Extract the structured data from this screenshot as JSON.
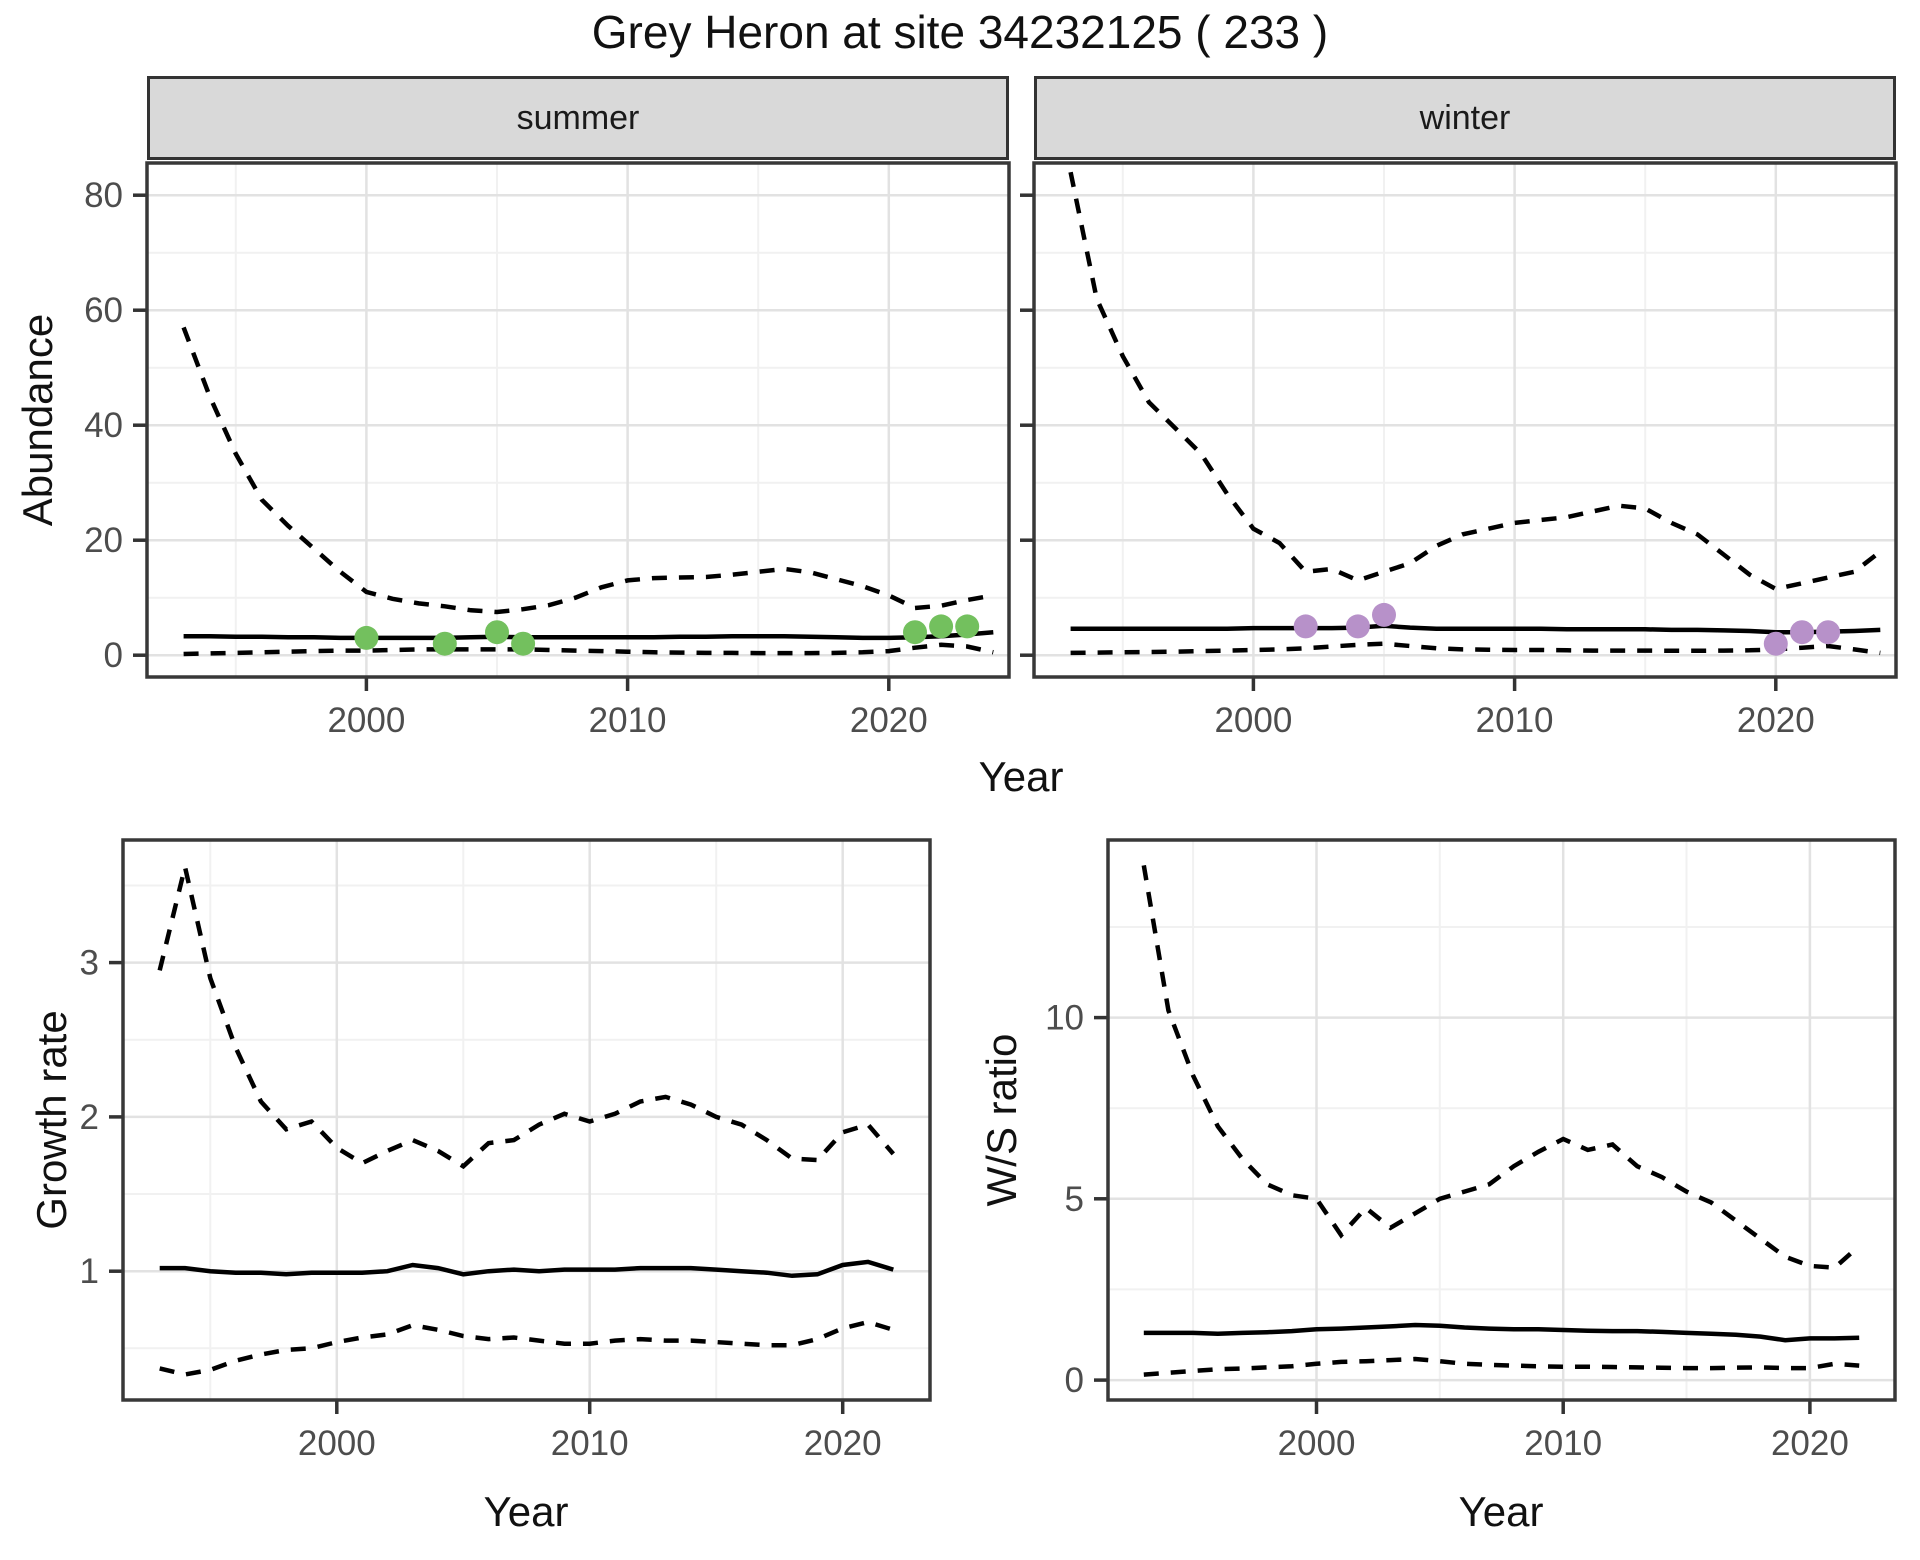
{
  "title": "Grey Heron at site 34232125 ( 233 )",
  "colors": {
    "summer_points": "#73c05e",
    "winter_points": "#b791c9",
    "line": "#000000",
    "grid_major": "#e2e2e2",
    "grid_minor": "#f1f1f1",
    "panel_border": "#383838",
    "tick_mark": "#333333",
    "tick_label": "#4d4d4d",
    "strip_fill": "#d9d9d9"
  },
  "chart_data": [
    {
      "id": "summer",
      "type": "line",
      "facet": "summer",
      "ylabel": "Abundance",
      "xlabel": "Year",
      "xlim": [
        1991.6,
        2024.6
      ],
      "ylim": [
        -3.8,
        85.6
      ],
      "xticks": [
        2000,
        2010,
        2020
      ],
      "xticks_minor": [
        1995,
        2005,
        2015
      ],
      "yticks": [
        0,
        20,
        40,
        60,
        80
      ],
      "yticks_minor": [
        10,
        30,
        50,
        70
      ],
      "x": [
        1993,
        1994,
        1995,
        1996,
        1997,
        1998,
        1999,
        2000,
        2001,
        2002,
        2003,
        2004,
        2005,
        2006,
        2007,
        2008,
        2009,
        2010,
        2011,
        2012,
        2013,
        2014,
        2015,
        2016,
        2017,
        2018,
        2019,
        2020,
        2021,
        2022,
        2023,
        2024
      ],
      "series": [
        {
          "name": "upper_95ci",
          "linetype": "dashed",
          "values": [
            57,
            45,
            35,
            27,
            22.5,
            18.5,
            14.5,
            11,
            9.8,
            9,
            8.5,
            7.8,
            7.5,
            8,
            8.7,
            10,
            11.8,
            13,
            13.4,
            13.5,
            13.6,
            14,
            14.5,
            15,
            14.4,
            13.2,
            12,
            10.4,
            8.2,
            8.6,
            9.6,
            10.4
          ]
        },
        {
          "name": "median",
          "linetype": "solid",
          "values": [
            3.3,
            3.3,
            3.2,
            3.2,
            3.1,
            3.1,
            3.0,
            3.0,
            3.0,
            3.0,
            3.0,
            3.1,
            3.2,
            3.1,
            3.1,
            3.1,
            3.1,
            3.1,
            3.1,
            3.2,
            3.2,
            3.3,
            3.3,
            3.3,
            3.2,
            3.1,
            3.0,
            3.0,
            3.1,
            3.3,
            3.6,
            4.0
          ]
        },
        {
          "name": "lower_95ci",
          "linetype": "dashed",
          "values": [
            0.2,
            0.3,
            0.4,
            0.5,
            0.6,
            0.7,
            0.8,
            0.8,
            0.9,
            1.0,
            1.0,
            1.0,
            1.0,
            1.0,
            0.9,
            0.8,
            0.7,
            0.6,
            0.5,
            0.45,
            0.4,
            0.4,
            0.35,
            0.35,
            0.35,
            0.4,
            0.5,
            0.7,
            1.3,
            1.8,
            1.5,
            0.5
          ]
        }
      ],
      "points": {
        "name": "observed_counts",
        "color_key": "summer_points",
        "x": [
          2000,
          2003,
          2005,
          2006,
          2021,
          2022,
          2023
        ],
        "y": [
          3,
          2,
          4,
          2,
          4,
          5,
          5
        ]
      }
    },
    {
      "id": "winter",
      "type": "line",
      "facet": "winter",
      "ylabel": "Abundance",
      "xlabel": "Year",
      "xlim": [
        1991.6,
        2024.6
      ],
      "ylim": [
        -3.8,
        85.6
      ],
      "xticks": [
        2000,
        2010,
        2020
      ],
      "xticks_minor": [
        1995,
        2005,
        2015
      ],
      "yticks": [
        0,
        20,
        40,
        60,
        80
      ],
      "yticks_minor": [
        10,
        30,
        50,
        70
      ],
      "show_ytick_labels": false,
      "x": [
        1993,
        1994,
        1995,
        1996,
        1997,
        1998,
        1999,
        2000,
        2001,
        2002,
        2003,
        2004,
        2005,
        2006,
        2007,
        2008,
        2009,
        2010,
        2011,
        2012,
        2013,
        2014,
        2015,
        2016,
        2017,
        2018,
        2019,
        2020,
        2021,
        2022,
        2023,
        2024
      ],
      "series": [
        {
          "name": "upper_95ci",
          "linetype": "dashed",
          "values": [
            84,
            62,
            52,
            44,
            39.5,
            35,
            28,
            22,
            19.5,
            14.5,
            15,
            13,
            14.5,
            16,
            19,
            21,
            22,
            23,
            23.5,
            24,
            25,
            26,
            25.5,
            23,
            21,
            17.5,
            14,
            11.5,
            12.5,
            13.5,
            14.5,
            18
          ]
        },
        {
          "name": "median",
          "linetype": "solid",
          "values": [
            4.6,
            4.6,
            4.6,
            4.6,
            4.6,
            4.6,
            4.6,
            4.7,
            4.7,
            4.7,
            4.7,
            4.8,
            5.1,
            4.8,
            4.6,
            4.6,
            4.6,
            4.6,
            4.6,
            4.5,
            4.5,
            4.5,
            4.5,
            4.4,
            4.4,
            4.3,
            4.2,
            4.0,
            4.0,
            4.1,
            4.2,
            4.4
          ]
        },
        {
          "name": "lower_95ci",
          "linetype": "dashed",
          "values": [
            0.4,
            0.45,
            0.5,
            0.55,
            0.6,
            0.7,
            0.8,
            0.9,
            1.0,
            1.2,
            1.5,
            1.8,
            2.0,
            1.6,
            1.2,
            1.0,
            0.95,
            0.9,
            0.9,
            0.85,
            0.8,
            0.8,
            0.8,
            0.75,
            0.75,
            0.8,
            0.85,
            1.0,
            1.3,
            1.6,
            1.0,
            0.4
          ]
        }
      ],
      "points": {
        "name": "observed_counts",
        "color_key": "winter_points",
        "x": [
          2002,
          2004,
          2005,
          2020,
          2021,
          2022
        ],
        "y": [
          5,
          5,
          7,
          2,
          4,
          4
        ]
      }
    },
    {
      "id": "growth",
      "type": "line",
      "ylabel": "Growth rate",
      "xlabel": "Year",
      "xlim": [
        1991.55,
        2023.45
      ],
      "ylim": [
        0.165,
        3.795
      ],
      "xticks": [
        2000,
        2010,
        2020
      ],
      "xticks_minor": [
        1995,
        2005,
        2015
      ],
      "yticks": [
        1,
        2,
        3
      ],
      "yticks_minor": [
        0.5,
        1.5,
        2.5,
        3.5
      ],
      "x": [
        1993,
        1994,
        1995,
        1996,
        1997,
        1998,
        1999,
        2000,
        2001,
        2002,
        2003,
        2004,
        2005,
        2006,
        2007,
        2008,
        2009,
        2010,
        2011,
        2012,
        2013,
        2014,
        2015,
        2016,
        2017,
        2018,
        2019,
        2020,
        2021,
        2022
      ],
      "series": [
        {
          "name": "upper_95ci",
          "linetype": "dashed",
          "values": [
            2.95,
            3.62,
            2.9,
            2.45,
            2.1,
            1.92,
            1.97,
            1.8,
            1.7,
            1.78,
            1.85,
            1.78,
            1.68,
            1.83,
            1.85,
            1.95,
            2.02,
            1.97,
            2.02,
            2.1,
            2.13,
            2.08,
            2.0,
            1.95,
            1.85,
            1.73,
            1.72,
            1.9,
            1.95,
            1.76
          ]
        },
        {
          "name": "median",
          "linetype": "solid",
          "values": [
            1.02,
            1.02,
            1.0,
            0.99,
            0.99,
            0.98,
            0.99,
            0.99,
            0.99,
            1.0,
            1.04,
            1.02,
            0.98,
            1.0,
            1.01,
            1.0,
            1.01,
            1.01,
            1.01,
            1.02,
            1.02,
            1.02,
            1.01,
            1.0,
            0.99,
            0.97,
            0.98,
            1.04,
            1.06,
            1.01
          ]
        },
        {
          "name": "lower_95ci",
          "linetype": "dashed",
          "values": [
            0.37,
            0.33,
            0.36,
            0.42,
            0.46,
            0.49,
            0.5,
            0.54,
            0.57,
            0.59,
            0.65,
            0.62,
            0.58,
            0.56,
            0.57,
            0.55,
            0.53,
            0.53,
            0.55,
            0.56,
            0.55,
            0.55,
            0.54,
            0.53,
            0.52,
            0.52,
            0.56,
            0.63,
            0.67,
            0.62
          ]
        }
      ]
    },
    {
      "id": "ws",
      "type": "line",
      "ylabel": "W/S ratio",
      "xlabel": "Year",
      "xlim": [
        1991.55,
        2023.45
      ],
      "ylim": [
        -0.55,
        14.9
      ],
      "xticks": [
        2000,
        2010,
        2020
      ],
      "xticks_minor": [
        1995,
        2005,
        2015
      ],
      "yticks": [
        0,
        5,
        10
      ],
      "yticks_minor": [
        2.5,
        7.5,
        12.5
      ],
      "x": [
        1993,
        1994,
        1995,
        1996,
        1997,
        1998,
        1999,
        2000,
        2001,
        2002,
        2003,
        2004,
        2005,
        2006,
        2007,
        2008,
        2009,
        2010,
        2011,
        2012,
        2013,
        2014,
        2015,
        2016,
        2017,
        2018,
        2019,
        2020,
        2021,
        2022
      ],
      "series": [
        {
          "name": "upper_95ci",
          "linetype": "dashed",
          "values": [
            14.2,
            10.2,
            8.4,
            7.0,
            6.1,
            5.4,
            5.1,
            5.0,
            4.0,
            4.75,
            4.2,
            4.6,
            5.0,
            5.2,
            5.4,
            5.9,
            6.3,
            6.65,
            6.35,
            6.5,
            5.9,
            5.6,
            5.2,
            4.9,
            4.4,
            3.9,
            3.4,
            3.15,
            3.1,
            3.7
          ]
        },
        {
          "name": "median",
          "linetype": "solid",
          "values": [
            1.3,
            1.3,
            1.3,
            1.28,
            1.3,
            1.32,
            1.35,
            1.4,
            1.42,
            1.45,
            1.48,
            1.52,
            1.5,
            1.45,
            1.42,
            1.4,
            1.4,
            1.38,
            1.36,
            1.35,
            1.35,
            1.33,
            1.3,
            1.28,
            1.25,
            1.2,
            1.1,
            1.15,
            1.15,
            1.17
          ]
        },
        {
          "name": "lower_95ci",
          "linetype": "dashed",
          "values": [
            0.15,
            0.2,
            0.25,
            0.3,
            0.32,
            0.35,
            0.38,
            0.45,
            0.5,
            0.52,
            0.55,
            0.58,
            0.52,
            0.45,
            0.42,
            0.4,
            0.38,
            0.37,
            0.37,
            0.36,
            0.35,
            0.34,
            0.33,
            0.33,
            0.34,
            0.35,
            0.33,
            0.33,
            0.45,
            0.4
          ]
        }
      ]
    }
  ]
}
